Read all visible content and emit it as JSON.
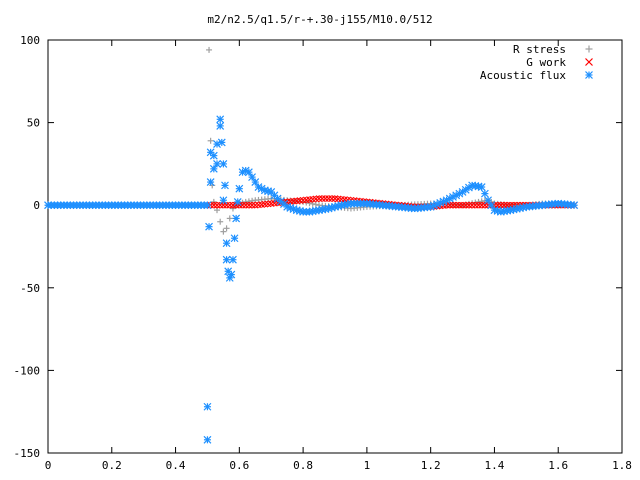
{
  "chart_data": {
    "type": "scatter",
    "title": "m2/n2.5/q1.5/r-+.30-j155/M10.0/512",
    "xlabel": "",
    "ylabel": "",
    "xlim": [
      0,
      1.8
    ],
    "ylim": [
      -150,
      100
    ],
    "grid": false,
    "legend_position": "top-right",
    "x_ticks": [
      "0",
      "0.2",
      "0.4",
      "0.6",
      "0.8",
      "1",
      "1.2",
      "1.4",
      "1.6",
      "1.8"
    ],
    "y_ticks": [
      "100",
      "50",
      "0",
      "-50",
      "-100",
      "-150"
    ],
    "colors": {
      "r_stress": "#a0a0a0",
      "g_work": "#ff0000",
      "acoustic_flux": "#1e90ff"
    },
    "series": [
      {
        "name": "R stress",
        "marker": "plus",
        "x": [
          0.0,
          0.1,
          0.2,
          0.3,
          0.4,
          0.48,
          0.5,
          0.505,
          0.51,
          0.515,
          0.52,
          0.53,
          0.54,
          0.55,
          0.56,
          0.57,
          0.58,
          0.59,
          0.6,
          0.62,
          0.65,
          0.7,
          0.75,
          0.8,
          0.85,
          0.9,
          0.95,
          1.0,
          1.1,
          1.2,
          1.3,
          1.35,
          1.38,
          1.4,
          1.45,
          1.5,
          1.55,
          1.6,
          1.65
        ],
        "y": [
          0,
          0,
          0,
          0,
          0,
          0,
          0,
          94,
          39,
          12,
          2,
          -3,
          -10,
          -16,
          -14,
          -8,
          -2,
          0,
          1,
          2,
          3,
          4,
          3,
          2,
          0,
          -1,
          -2,
          -1,
          0,
          1,
          0,
          2,
          3,
          1,
          0,
          0,
          1,
          1,
          0
        ]
      },
      {
        "name": "G work",
        "marker": "cross",
        "x": [
          0.5,
          0.55,
          0.6,
          0.65,
          0.7,
          0.75,
          0.8,
          0.85,
          0.9,
          0.95,
          1.0,
          1.05,
          1.1,
          1.15,
          1.2,
          1.25,
          1.3,
          1.35,
          1.4,
          1.45,
          1.5,
          1.55,
          1.6,
          1.65
        ],
        "y": [
          0,
          0,
          0,
          0,
          1,
          2,
          3,
          4,
          4,
          3,
          2,
          1,
          0,
          -1,
          -1,
          0,
          0,
          0,
          0,
          0,
          0,
          0,
          0,
          0
        ]
      },
      {
        "name": "Acoustic flux",
        "marker": "star",
        "x": [
          0.0,
          0.05,
          0.1,
          0.15,
          0.2,
          0.25,
          0.3,
          0.35,
          0.4,
          0.45,
          0.48,
          0.5,
          0.5,
          0.5,
          0.505,
          0.51,
          0.51,
          0.52,
          0.52,
          0.53,
          0.53,
          0.54,
          0.54,
          0.545,
          0.55,
          0.55,
          0.555,
          0.56,
          0.56,
          0.565,
          0.57,
          0.575,
          0.58,
          0.585,
          0.59,
          0.595,
          0.6,
          0.61,
          0.62,
          0.63,
          0.64,
          0.65,
          0.66,
          0.68,
          0.7,
          0.72,
          0.75,
          0.78,
          0.8,
          0.82,
          0.85,
          0.88,
          0.9,
          0.92,
          0.95,
          1.0,
          1.05,
          1.1,
          1.15,
          1.2,
          1.25,
          1.3,
          1.33,
          1.36,
          1.38,
          1.4,
          1.42,
          1.45,
          1.5,
          1.55,
          1.6,
          1.65
        ],
        "y": [
          0,
          0,
          0,
          0,
          0,
          0,
          0,
          0,
          0,
          0,
          0,
          0,
          -122,
          -142,
          -13,
          32,
          14,
          30,
          22,
          25,
          37,
          52,
          48,
          38,
          25,
          3,
          12,
          -23,
          -33,
          -40,
          -44,
          -42,
          -33,
          -20,
          -8,
          2,
          10,
          20,
          21,
          20,
          17,
          14,
          11,
          9,
          8,
          4,
          -1,
          -3,
          -4,
          -4,
          -3,
          -2,
          -1,
          0,
          1,
          1,
          0,
          -1,
          -2,
          -1,
          3,
          8,
          12,
          11,
          3,
          -3,
          -4,
          -3,
          -1,
          0,
          1,
          0
        ]
      }
    ]
  }
}
